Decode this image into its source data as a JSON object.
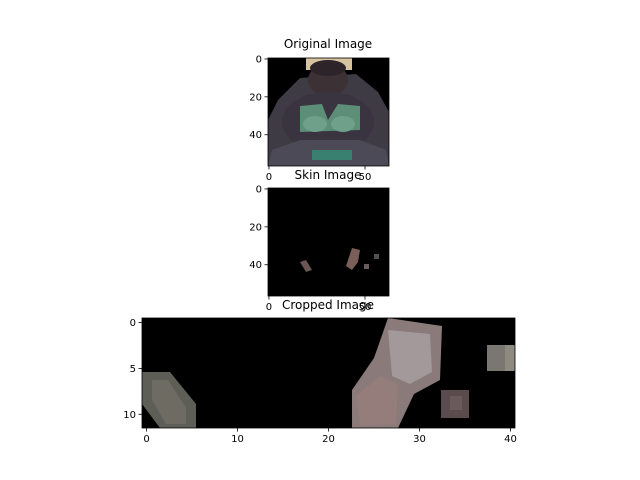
{
  "chart_data": [
    {
      "type": "image",
      "title": "Original Image",
      "xlim": [
        -0.5,
        62.5
      ],
      "ylim": [
        56.5,
        -0.5
      ],
      "xticks": [
        0,
        50
      ],
      "xtick_labels": [
        "0",
        "50"
      ],
      "yticks": [
        0,
        20,
        40
      ],
      "ytick_labels": [
        "0",
        "20",
        "40"
      ],
      "image_content": "person photo on black background"
    },
    {
      "type": "image",
      "title": "Skin Image",
      "xlim": [
        -0.5,
        62.5
      ],
      "ylim": [
        56.5,
        -0.5
      ],
      "xticks": [
        0,
        50
      ],
      "xtick_labels": [
        "0",
        "50"
      ],
      "yticks": [
        0,
        20,
        40
      ],
      "ytick_labels": [
        "0",
        "20",
        "40"
      ],
      "image_content": "black mask with small skin-colored patches"
    },
    {
      "type": "image",
      "title": "Cropped Image",
      "xlim": [
        -0.5,
        40.5
      ],
      "ylim": [
        11.5,
        -0.5
      ],
      "xticks": [
        0,
        10,
        20,
        30,
        40
      ],
      "xtick_labels": [
        "0",
        "10",
        "20",
        "30",
        "40"
      ],
      "yticks": [
        0,
        5,
        10
      ],
      "ytick_labels": [
        "0",
        "5",
        "10"
      ],
      "image_content": "pixelated crop of skin regions on black"
    }
  ]
}
